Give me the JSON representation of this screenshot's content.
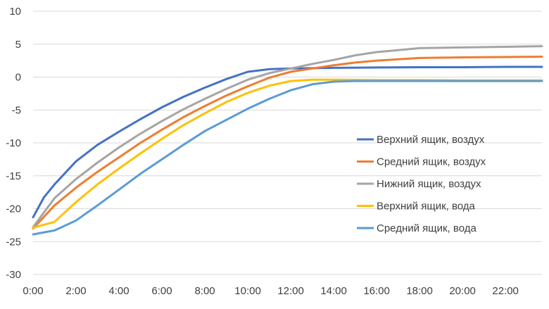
{
  "chart_data": {
    "type": "line",
    "xlim": [
      0,
      23.7
    ],
    "ylim": [
      -30,
      10
    ],
    "y_ticks": [
      10,
      5,
      0,
      -5,
      -10,
      -15,
      -20,
      -25,
      -30
    ],
    "x_ticks": [
      {
        "value": 0,
        "label": "0:00"
      },
      {
        "value": 2,
        "label": "2:00"
      },
      {
        "value": 4,
        "label": "4:00"
      },
      {
        "value": 6,
        "label": "6:00"
      },
      {
        "value": 8,
        "label": "8:00"
      },
      {
        "value": 10,
        "label": "10:00"
      },
      {
        "value": 12,
        "label": "12:00"
      },
      {
        "value": 14,
        "label": "14:00"
      },
      {
        "value": 16,
        "label": "16:00"
      },
      {
        "value": 18,
        "label": "18:00"
      },
      {
        "value": 20,
        "label": "20:00"
      },
      {
        "value": 22,
        "label": "22:00"
      }
    ],
    "grid": "horizontal",
    "legend_position": "right",
    "series": [
      {
        "name": "Верхний ящик, воздух",
        "color": "#4472C4",
        "points": [
          [
            0,
            -21.3
          ],
          [
            0.5,
            -18.3
          ],
          [
            1,
            -16.3
          ],
          [
            2,
            -12.8
          ],
          [
            3,
            -10.3
          ],
          [
            4,
            -8.3
          ],
          [
            5,
            -6.4
          ],
          [
            6,
            -4.6
          ],
          [
            7,
            -3
          ],
          [
            8,
            -1.6
          ],
          [
            9,
            -0.3
          ],
          [
            10,
            0.8
          ],
          [
            11,
            1.2
          ],
          [
            12,
            1.3
          ],
          [
            13,
            1.35
          ],
          [
            14,
            1.4
          ],
          [
            16,
            1.45
          ],
          [
            18,
            1.5
          ],
          [
            20,
            1.5
          ],
          [
            22,
            1.55
          ],
          [
            23.7,
            1.55
          ]
        ]
      },
      {
        "name": "Средний ящик, воздух",
        "color": "#ED7D31",
        "points": [
          [
            0,
            -23
          ],
          [
            1,
            -19.5
          ],
          [
            2,
            -16.8
          ],
          [
            3,
            -14.4
          ],
          [
            4,
            -12.2
          ],
          [
            5,
            -10
          ],
          [
            6,
            -8
          ],
          [
            7,
            -6.1
          ],
          [
            8,
            -4.4
          ],
          [
            9,
            -2.8
          ],
          [
            10,
            -1.4
          ],
          [
            11,
            -0.1
          ],
          [
            12,
            0.8
          ],
          [
            13,
            1.3
          ],
          [
            14,
            1.8
          ],
          [
            15,
            2.2
          ],
          [
            16,
            2.5
          ],
          [
            18,
            2.9
          ],
          [
            20,
            3
          ],
          [
            22,
            3.05
          ],
          [
            23.7,
            3.1
          ]
        ]
      },
      {
        "name": "Нижний ящик, воздух",
        "color": "#A5A5A5",
        "points": [
          [
            0,
            -22.8
          ],
          [
            1,
            -18.4
          ],
          [
            2,
            -15.5
          ],
          [
            3,
            -13
          ],
          [
            4,
            -10.7
          ],
          [
            5,
            -8.6
          ],
          [
            6,
            -6.7
          ],
          [
            7,
            -4.9
          ],
          [
            8,
            -3.3
          ],
          [
            9,
            -1.8
          ],
          [
            10,
            -0.4
          ],
          [
            11,
            0.6
          ],
          [
            12,
            1.3
          ],
          [
            13,
            2
          ],
          [
            14,
            2.6
          ],
          [
            15,
            3.3
          ],
          [
            16,
            3.8
          ],
          [
            17,
            4.1
          ],
          [
            18,
            4.4
          ],
          [
            20,
            4.5
          ],
          [
            22,
            4.6
          ],
          [
            23.7,
            4.7
          ]
        ]
      },
      {
        "name": "Верхний ящик, вода",
        "color": "#FFC000",
        "points": [
          [
            0,
            -22.9
          ],
          [
            1,
            -22
          ],
          [
            2,
            -19
          ],
          [
            3,
            -16.3
          ],
          [
            4,
            -13.9
          ],
          [
            5,
            -11.6
          ],
          [
            6,
            -9.4
          ],
          [
            7,
            -7.3
          ],
          [
            8,
            -5.5
          ],
          [
            9,
            -3.8
          ],
          [
            10,
            -2.4
          ],
          [
            11,
            -1.3
          ],
          [
            12,
            -0.6
          ],
          [
            13,
            -0.4
          ],
          [
            14,
            -0.4
          ],
          [
            16,
            -0.45
          ],
          [
            18,
            -0.45
          ],
          [
            20,
            -0.5
          ],
          [
            22,
            -0.5
          ],
          [
            23.7,
            -0.5
          ]
        ]
      },
      {
        "name": "Средний ящик, вода",
        "color": "#5B9BD5",
        "points": [
          [
            0,
            -23.9
          ],
          [
            1,
            -23.3
          ],
          [
            2,
            -21.8
          ],
          [
            3,
            -19.5
          ],
          [
            4,
            -17.1
          ],
          [
            5,
            -14.7
          ],
          [
            6,
            -12.5
          ],
          [
            7,
            -10.3
          ],
          [
            8,
            -8.2
          ],
          [
            9,
            -6.5
          ],
          [
            10,
            -4.8
          ],
          [
            11,
            -3.3
          ],
          [
            12,
            -2
          ],
          [
            13,
            -1.1
          ],
          [
            14,
            -0.7
          ],
          [
            15,
            -0.6
          ],
          [
            16,
            -0.6
          ],
          [
            18,
            -0.6
          ],
          [
            20,
            -0.6
          ],
          [
            22,
            -0.6
          ],
          [
            23.7,
            -0.6
          ]
        ]
      }
    ]
  }
}
